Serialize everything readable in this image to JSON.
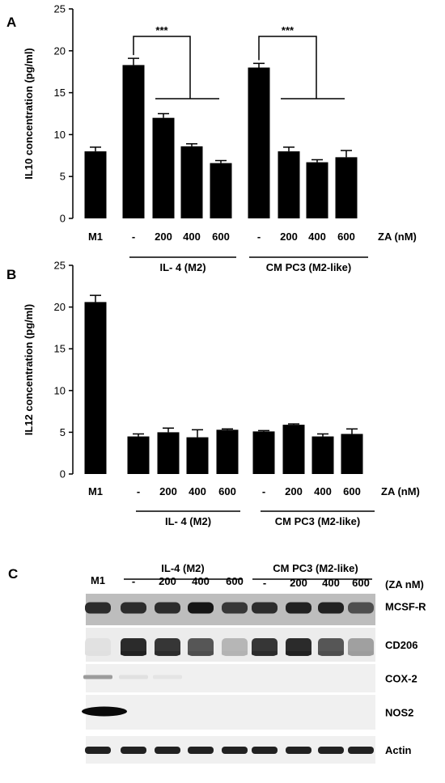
{
  "panels": {
    "a_letter": "A",
    "b_letter": "B",
    "c_letter": "C"
  },
  "chart_data": [
    {
      "type": "bar",
      "panel": "A",
      "ylabel": "IL10 concentration (pg/ml)",
      "ylim": [
        0,
        25
      ],
      "yticks": [
        0,
        5,
        10,
        15,
        20,
        25
      ],
      "categories": [
        "M1",
        "-",
        "200",
        "400",
        "600",
        "-",
        "200",
        "400",
        "600"
      ],
      "values": [
        8.0,
        18.3,
        12.0,
        8.6,
        6.6,
        18.0,
        8.0,
        6.7,
        7.3
      ],
      "errors": [
        0.5,
        0.8,
        0.5,
        0.3,
        0.3,
        0.5,
        0.5,
        0.3,
        0.8
      ],
      "x_unit_label": "ZA (nM)",
      "groups": [
        "IL- 4 (M2)",
        "CM PC3 (M2-like)"
      ],
      "significance": [
        "***",
        "***"
      ]
    },
    {
      "type": "bar",
      "panel": "B",
      "ylabel": "IL12 concentration (pg/ml)",
      "ylim": [
        0,
        25
      ],
      "yticks": [
        0,
        5,
        10,
        15,
        20,
        25
      ],
      "categories": [
        "M1",
        "-",
        "200",
        "400",
        "600",
        "-",
        "200",
        "400",
        "600"
      ],
      "values": [
        20.6,
        4.5,
        5.0,
        4.4,
        5.3,
        5.1,
        5.9,
        4.5,
        4.8
      ],
      "errors": [
        0.8,
        0.3,
        0.5,
        0.9,
        0.1,
        0.1,
        0.1,
        0.3,
        0.6
      ],
      "x_unit_label": "ZA (nM)",
      "groups": [
        "IL- 4 (M2)",
        "CM PC3 (M2-like)"
      ]
    }
  ],
  "blot": {
    "lanes": [
      "M1",
      "-",
      "200",
      "400",
      "600",
      "-",
      "200",
      "400",
      "600"
    ],
    "unit_label": "(ZA nM)",
    "groups": [
      "IL-4 (M2)",
      "CM PC3 (M2-like)"
    ],
    "proteins": [
      "MCSF-R",
      "CD206",
      "COX-2",
      "NOS2",
      "Actin"
    ],
    "intensities": {
      "MCSF-R": [
        0.85,
        0.85,
        0.85,
        0.95,
        0.8,
        0.85,
        0.9,
        0.9,
        0.7
      ],
      "CD206": [
        0.05,
        0.9,
        0.85,
        0.7,
        0.25,
        0.85,
        0.9,
        0.7,
        0.35
      ],
      "COX-2": [
        0.35,
        0.05,
        0.03,
        0.0,
        0.0,
        0.0,
        0.0,
        0.0,
        0.0
      ],
      "NOS2": [
        1.0,
        0.0,
        0.0,
        0.0,
        0.0,
        0.0,
        0.0,
        0.0,
        0.0
      ],
      "Actin": [
        0.9,
        0.9,
        0.9,
        0.9,
        0.9,
        0.9,
        0.9,
        0.9,
        0.9
      ]
    }
  },
  "colors": {
    "bar": "#000000",
    "text": "#000000",
    "blot_bg": "#e9e9e9",
    "band": "#111111"
  }
}
